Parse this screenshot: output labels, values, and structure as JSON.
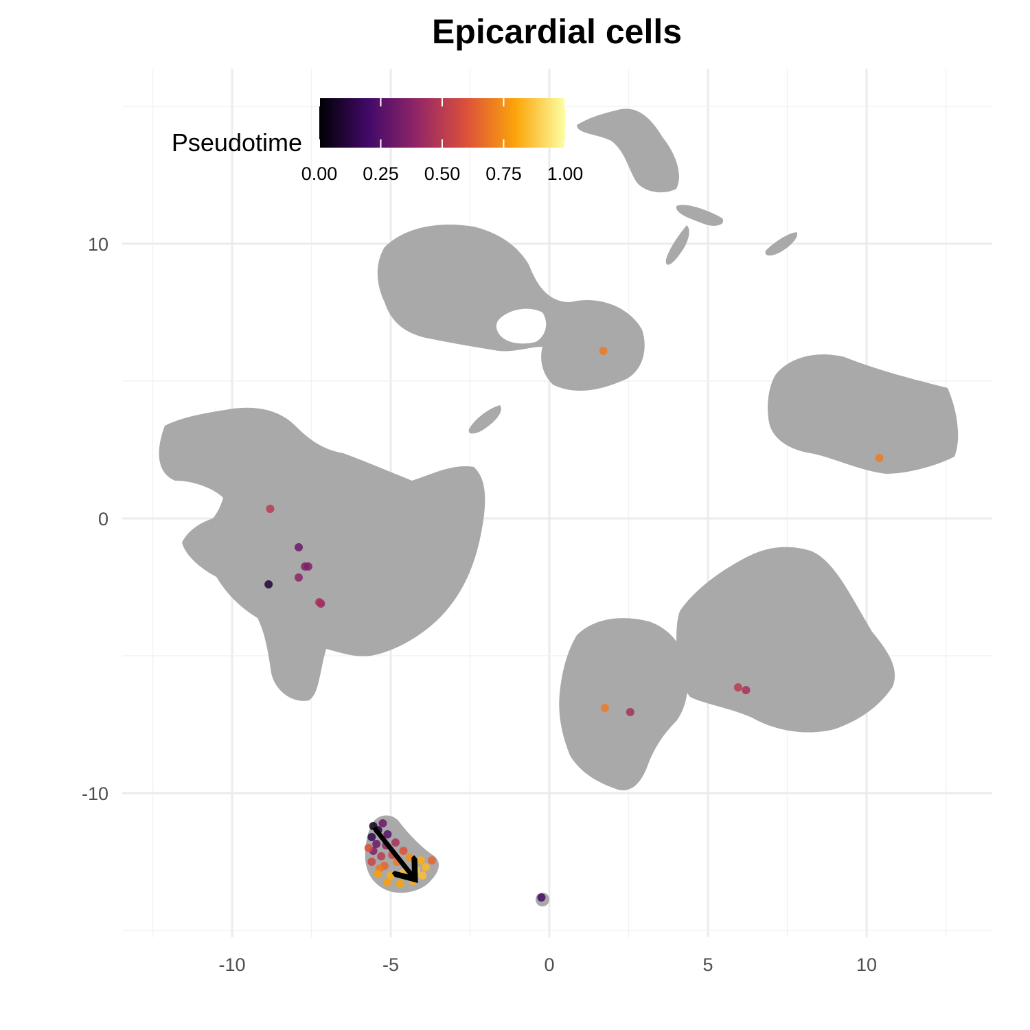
{
  "chart_data": {
    "type": "scatter",
    "title": "Epicardial cells",
    "xlabel": "",
    "ylabel": "",
    "xlim": [
      -12.5,
      13.9
    ],
    "ylim": [
      -15,
      16.3
    ],
    "x_ticks": [
      -10,
      -5,
      0,
      5,
      10
    ],
    "y_ticks": [
      -10,
      0,
      10
    ],
    "x_tick_labels": [
      "-10",
      "-5",
      "0",
      "5",
      "10"
    ],
    "y_tick_labels": [
      "-10",
      "0",
      "10"
    ],
    "grid": true,
    "background_color": "#a9a9a9",
    "legend": {
      "title": "Pseudotime",
      "placement": "top-left",
      "range": [
        0,
        1
      ],
      "ticks": [
        0,
        0.25,
        0.5,
        0.75,
        1
      ],
      "tick_labels": [
        "0.00",
        "0.25",
        "0.50",
        "0.75",
        "1.00"
      ],
      "colormap": "inferno",
      "stops": [
        "#000004",
        "#420a68",
        "#932667",
        "#dd513a",
        "#fca50a",
        "#fcffa4"
      ]
    },
    "points": [
      {
        "x": 1.7,
        "y": 6.1,
        "pseudotime": 0.7
      },
      {
        "x": 10.4,
        "y": 2.2,
        "pseudotime": 0.7
      },
      {
        "x": -8.8,
        "y": 0.35,
        "pseudotime": 0.5
      },
      {
        "x": -7.9,
        "y": -1.05,
        "pseudotime": 0.3
      },
      {
        "x": -7.6,
        "y": -1.75,
        "pseudotime": 0.35
      },
      {
        "x": -7.7,
        "y": -1.75,
        "pseudotime": 0.35
      },
      {
        "x": -7.9,
        "y": -2.15,
        "pseudotime": 0.38
      },
      {
        "x": -8.85,
        "y": -2.4,
        "pseudotime": 0.1
      },
      {
        "x": -7.25,
        "y": -3.05,
        "pseudotime": 0.45
      },
      {
        "x": -7.2,
        "y": -3.1,
        "pseudotime": 0.4
      },
      {
        "x": 1.75,
        "y": -6.9,
        "pseudotime": 0.7
      },
      {
        "x": 2.55,
        "y": -7.05,
        "pseudotime": 0.45
      },
      {
        "x": 5.95,
        "y": -6.15,
        "pseudotime": 0.5
      },
      {
        "x": 6.2,
        "y": -6.25,
        "pseudotime": 0.45
      },
      {
        "x": -0.25,
        "y": -13.8,
        "pseudotime": 0.2
      },
      {
        "x": -5.55,
        "y": -11.2,
        "pseudotime": 0.05
      },
      {
        "x": -5.4,
        "y": -11.35,
        "pseudotime": 0.12
      },
      {
        "x": -5.25,
        "y": -11.1,
        "pseudotime": 0.3
      },
      {
        "x": -5.6,
        "y": -11.6,
        "pseudotime": 0.15
      },
      {
        "x": -5.1,
        "y": -11.5,
        "pseudotime": 0.25
      },
      {
        "x": -5.45,
        "y": -11.85,
        "pseudotime": 0.3
      },
      {
        "x": -5.15,
        "y": -11.9,
        "pseudotime": 0.4
      },
      {
        "x": -4.85,
        "y": -11.8,
        "pseudotime": 0.45
      },
      {
        "x": -5.55,
        "y": -12.1,
        "pseudotime": 0.35
      },
      {
        "x": -5.3,
        "y": -12.3,
        "pseudotime": 0.5
      },
      {
        "x": -4.95,
        "y": -12.25,
        "pseudotime": 0.55
      },
      {
        "x": -4.6,
        "y": -12.1,
        "pseudotime": 0.6
      },
      {
        "x": -5.6,
        "y": -12.5,
        "pseudotime": 0.55
      },
      {
        "x": -5.2,
        "y": -12.65,
        "pseudotime": 0.65
      },
      {
        "x": -4.8,
        "y": -12.5,
        "pseudotime": 0.7
      },
      {
        "x": -4.4,
        "y": -12.35,
        "pseudotime": 0.75
      },
      {
        "x": -4.05,
        "y": -12.45,
        "pseudotime": 0.82
      },
      {
        "x": -3.7,
        "y": -12.45,
        "pseudotime": 0.65
      },
      {
        "x": -5.4,
        "y": -12.95,
        "pseudotime": 0.78
      },
      {
        "x": -5.0,
        "y": -13.0,
        "pseudotime": 0.82
      },
      {
        "x": -4.6,
        "y": -12.9,
        "pseudotime": 0.86
      },
      {
        "x": -4.2,
        "y": -12.8,
        "pseudotime": 0.88
      },
      {
        "x": -3.9,
        "y": -12.7,
        "pseudotime": 0.84
      },
      {
        "x": -5.1,
        "y": -13.25,
        "pseudotime": 0.78
      },
      {
        "x": -4.7,
        "y": -13.3,
        "pseudotime": 0.8
      },
      {
        "x": -4.3,
        "y": -13.2,
        "pseudotime": 0.82
      },
      {
        "x": -4.0,
        "y": -13.0,
        "pseudotime": 0.86
      },
      {
        "x": -5.7,
        "y": -12.0,
        "pseudotime": 0.6
      },
      {
        "x": -5.35,
        "y": -12.75,
        "pseudotime": 0.7
      }
    ]
  }
}
